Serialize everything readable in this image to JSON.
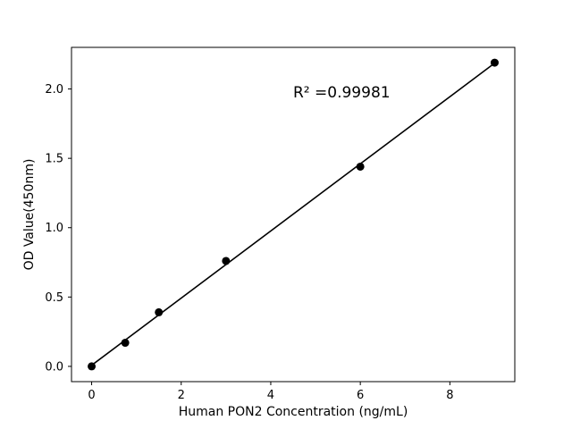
{
  "chart_data": {
    "type": "scatter",
    "title": "",
    "xlabel": "Human PON2 Concentration (ng/mL)",
    "ylabel": "OD Value(450nm)",
    "annotation": "R² =0.99981",
    "annotation_pos": {
      "x": 4.5,
      "y": 1.95
    },
    "x": [
      0,
      0.75,
      1.5,
      3,
      6,
      9
    ],
    "y": [
      0.0,
      0.17,
      0.39,
      0.76,
      1.44,
      2.19
    ],
    "fit_line": true,
    "xlim": [
      -0.45,
      9.45
    ],
    "ylim": [
      -0.11,
      2.3
    ],
    "xticks": [
      0,
      2,
      4,
      6,
      8
    ],
    "xtick_labels": [
      "0",
      "2",
      "4",
      "6",
      "8"
    ],
    "yticks": [
      0.0,
      0.5,
      1.0,
      1.5,
      2.0
    ],
    "ytick_labels": [
      "0.0",
      "0.5",
      "1.0",
      "1.5",
      "2.0"
    ],
    "grid": false,
    "legend": null,
    "marker_color": "#000000",
    "line_color": "#000000",
    "background_color": "#ffffff"
  }
}
